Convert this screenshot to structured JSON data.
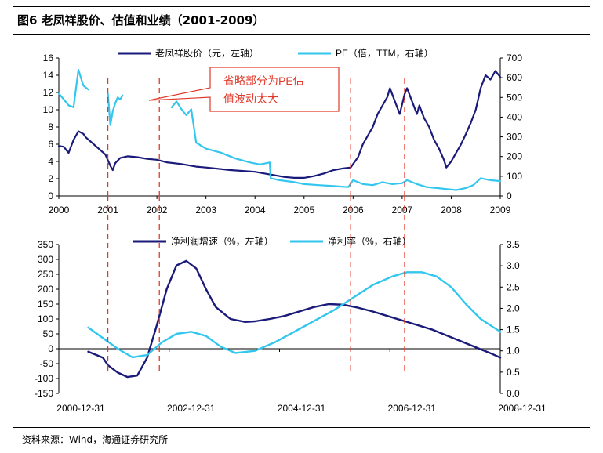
{
  "header": {
    "title": "图6  老凤祥股价、估值和业绩（2001-2009）"
  },
  "footer": {
    "source": "资料来源：Wind，海通证券研究所"
  },
  "colors": {
    "dark_series": "#1a1a7a",
    "light_series": "#33c6ee",
    "divider": "#e03a2a",
    "callout_border": "#e03a2a"
  },
  "chart_data": [
    {
      "type": "line",
      "title": "",
      "callout": {
        "line1": "省略部分为PE估",
        "line2": "值波动太大"
      },
      "x_tick_labels": [
        "2000",
        "2001",
        "2002",
        "2003",
        "2004",
        "2005",
        "2006",
        "2007",
        "2008",
        "2009"
      ],
      "xlim": [
        2000,
        2009
      ],
      "y_left": {
        "ticks": [
          "0",
          "2",
          "4",
          "6",
          "8",
          "10",
          "12",
          "14",
          "16"
        ],
        "ylim": [
          0,
          16
        ]
      },
      "y_right": {
        "ticks": [
          "0",
          "100",
          "200",
          "300",
          "400",
          "500",
          "600",
          "700"
        ],
        "ylim": [
          0,
          700
        ]
      },
      "series": [
        {
          "name": "老凤祥股价（元，左轴）",
          "axis": "left",
          "x": [
            2000.0,
            2000.1,
            2000.2,
            2000.3,
            2000.4,
            2000.5,
            2000.55,
            2000.65,
            2000.75,
            2000.85,
            2000.95,
            2001.05,
            2001.1,
            2001.15,
            2001.25,
            2001.4,
            2001.6,
            2001.8,
            2002.0,
            2002.2,
            2002.5,
            2002.8,
            2003.0,
            2003.5,
            2004.0,
            2004.2,
            2004.4,
            2004.6,
            2004.8,
            2005.0,
            2005.2,
            2005.4,
            2005.6,
            2005.8,
            2005.95,
            2006.1,
            2006.2,
            2006.3,
            2006.4,
            2006.5,
            2006.6,
            2006.7,
            2006.75,
            2006.85,
            2006.95,
            2007.05,
            2007.1,
            2007.2,
            2007.3,
            2007.35,
            2007.45,
            2007.55,
            2007.65,
            2007.75,
            2007.85,
            2007.9,
            2008.0,
            2008.1,
            2008.2,
            2008.3,
            2008.4,
            2008.5,
            2008.6,
            2008.7,
            2008.8,
            2008.9,
            2009.0
          ],
          "values": [
            5.8,
            5.7,
            5.0,
            6.5,
            7.5,
            7.2,
            6.8,
            6.3,
            5.8,
            5.3,
            4.8,
            3.5,
            3.0,
            3.8,
            4.4,
            4.6,
            4.5,
            4.3,
            4.2,
            3.9,
            3.7,
            3.4,
            3.3,
            3.0,
            2.8,
            2.6,
            2.4,
            2.2,
            2.1,
            2.1,
            2.3,
            2.6,
            3.0,
            3.2,
            3.3,
            4.5,
            6.0,
            7.0,
            8.0,
            9.5,
            10.5,
            11.5,
            12.5,
            11.0,
            9.5,
            11.8,
            12.5,
            11.0,
            9.5,
            10.5,
            9.0,
            8.0,
            6.5,
            5.5,
            4.2,
            3.3,
            4.0,
            5.0,
            6.0,
            7.2,
            8.5,
            10.0,
            12.5,
            14.0,
            13.5,
            14.5,
            13.8
          ]
        },
        {
          "name": "PE（倍，TTM，右轴）",
          "axis": "right",
          "gaps_after_index": [
            6,
            13
          ],
          "x": [
            2000.0,
            2000.1,
            2000.2,
            2000.3,
            2000.4,
            2000.5,
            2000.6,
            2001.0,
            2001.05,
            2001.1,
            2001.15,
            2001.2,
            2001.25,
            2001.3,
            2002.3,
            2002.4,
            2002.5,
            2002.6,
            2002.7,
            2002.8,
            2003.0,
            2003.3,
            2003.6,
            2003.9,
            2004.1,
            2004.3,
            2004.32,
            2004.5,
            2004.8,
            2005.0,
            2005.3,
            2005.6,
            2005.9,
            2006.0,
            2006.2,
            2006.4,
            2006.6,
            2006.8,
            2007.0,
            2007.1,
            2007.3,
            2007.5,
            2007.7,
            2007.9,
            2008.1,
            2008.3,
            2008.45,
            2008.6,
            2008.8,
            2009.0
          ],
          "values": [
            520,
            490,
            460,
            450,
            640,
            560,
            540,
            520,
            360,
            430,
            470,
            500,
            490,
            510,
            450,
            480,
            440,
            410,
            440,
            270,
            240,
            220,
            190,
            170,
            160,
            170,
            90,
            80,
            70,
            60,
            55,
            50,
            45,
            80,
            60,
            55,
            70,
            60,
            65,
            80,
            60,
            45,
            40,
            35,
            30,
            40,
            55,
            90,
            80,
            75
          ]
        }
      ]
    },
    {
      "type": "line",
      "title": "",
      "x_tick_labels": [
        "2000-12-31",
        "2002-12-31",
        "2004-12-31",
        "2006-12-31",
        "2008-12-31"
      ],
      "xlim": [
        2000,
        2009
      ],
      "y_left": {
        "ticks": [
          "-150",
          "-100",
          "-50",
          "0",
          "50",
          "100",
          "150",
          "200",
          "250",
          "300",
          "350"
        ],
        "ylim": [
          -150,
          350
        ]
      },
      "y_right": {
        "ticks": [
          "0.0",
          "0.5",
          "1.0",
          "1.5",
          "2.0",
          "2.5",
          "3.0",
          "3.5"
        ],
        "ylim": [
          0,
          3.5
        ]
      },
      "series": [
        {
          "name": "净利润增速（%，左轴）",
          "axis": "left",
          "x": [
            2000.6,
            2000.9,
            2001.0,
            2001.2,
            2001.4,
            2001.6,
            2001.8,
            2002.0,
            2002.2,
            2002.4,
            2002.6,
            2002.8,
            2003.0,
            2003.2,
            2003.5,
            2003.8,
            2004.0,
            2004.3,
            2004.6,
            2004.9,
            2005.2,
            2005.5,
            2005.8,
            2006.1,
            2006.4,
            2006.7,
            2007.0,
            2007.3,
            2007.6,
            2007.9,
            2008.2,
            2008.5,
            2008.8,
            2009.0
          ],
          "values": [
            -10,
            -30,
            -55,
            -80,
            -95,
            -90,
            -30,
            80,
            200,
            280,
            295,
            270,
            200,
            140,
            100,
            90,
            92,
            100,
            110,
            125,
            140,
            150,
            148,
            138,
            125,
            110,
            95,
            80,
            65,
            45,
            25,
            5,
            -15,
            -30
          ]
        },
        {
          "name": "净利率（%，右轴）",
          "axis": "right",
          "x": [
            2000.6,
            2000.9,
            2001.2,
            2001.5,
            2001.8,
            2002.1,
            2002.4,
            2002.7,
            2003.0,
            2003.3,
            2003.6,
            2004.0,
            2004.4,
            2004.8,
            2005.2,
            2005.6,
            2006.0,
            2006.4,
            2006.8,
            2007.1,
            2007.4,
            2007.7,
            2008.0,
            2008.3,
            2008.6,
            2009.0
          ],
          "values": [
            1.55,
            1.3,
            1.05,
            0.85,
            0.9,
            1.2,
            1.4,
            1.45,
            1.35,
            1.1,
            0.95,
            1.0,
            1.2,
            1.45,
            1.7,
            1.95,
            2.25,
            2.55,
            2.75,
            2.85,
            2.85,
            2.75,
            2.5,
            2.1,
            1.75,
            1.45
          ]
        }
      ]
    }
  ]
}
